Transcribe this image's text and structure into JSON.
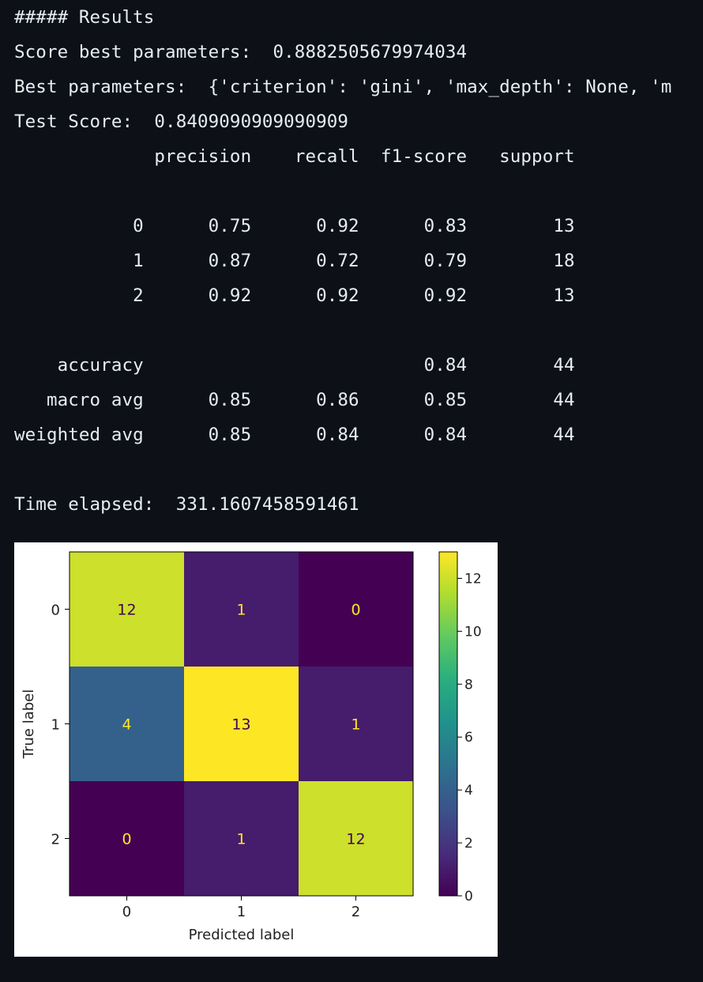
{
  "output": {
    "heading": "##### Results",
    "score_best_label": "Score best parameters:",
    "score_best_value": "0.8882505679974034",
    "best_params_label": "Best parameters:",
    "best_params_value": "{'criterion': 'gini', 'max_depth': None, 'm",
    "test_score_label": "Test Score:",
    "test_score_value": "0.8409090909090909",
    "report": {
      "headers": [
        "precision",
        "recall",
        "f1-score",
        "support"
      ],
      "rows": [
        {
          "label": "0",
          "precision": "0.75",
          "recall": "0.92",
          "f1": "0.83",
          "support": "13"
        },
        {
          "label": "1",
          "precision": "0.87",
          "recall": "0.72",
          "f1": "0.79",
          "support": "18"
        },
        {
          "label": "2",
          "precision": "0.92",
          "recall": "0.92",
          "f1": "0.92",
          "support": "13"
        }
      ],
      "summary": [
        {
          "label": "accuracy",
          "precision": "",
          "recall": "",
          "f1": "0.84",
          "support": "44"
        },
        {
          "label": "macro avg",
          "precision": "0.85",
          "recall": "0.86",
          "f1": "0.85",
          "support": "44"
        },
        {
          "label": "weighted avg",
          "precision": "0.85",
          "recall": "0.84",
          "f1": "0.84",
          "support": "44"
        }
      ]
    },
    "time_label": "Time elapsed:",
    "time_value": "331.1607458591461"
  },
  "chart_data": {
    "type": "heatmap",
    "title": "",
    "xlabel": "Predicted label",
    "ylabel": "True label",
    "x_categories": [
      "0",
      "1",
      "2"
    ],
    "y_categories": [
      "0",
      "1",
      "2"
    ],
    "matrix": [
      [
        12,
        1,
        0
      ],
      [
        4,
        13,
        1
      ],
      [
        0,
        1,
        12
      ]
    ],
    "colormap": "viridis",
    "colorbar_range": [
      0,
      13
    ],
    "colorbar_ticks": [
      "0",
      "2",
      "4",
      "6",
      "8",
      "10",
      "12"
    ]
  }
}
